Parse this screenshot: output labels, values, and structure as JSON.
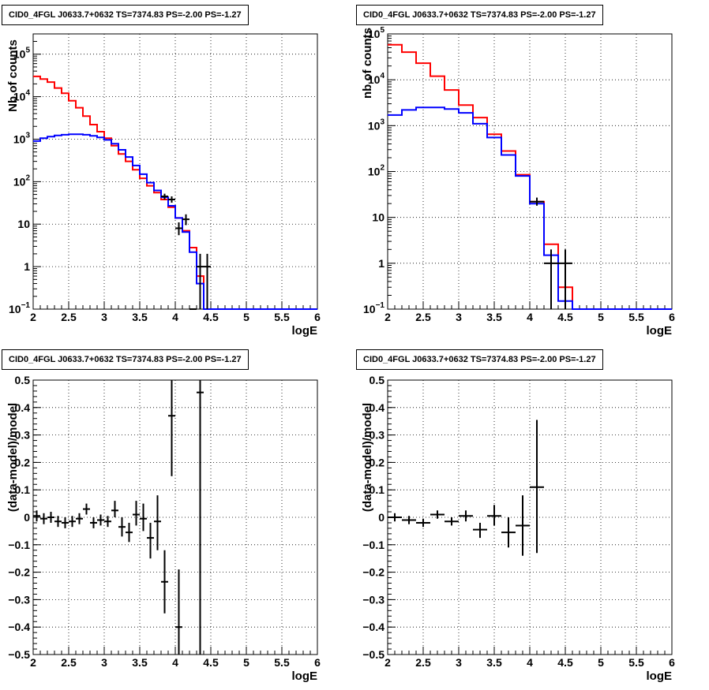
{
  "colors": {
    "total": "#ff0000",
    "model": "#0000ff",
    "data": "#000000",
    "grid": "#000000"
  },
  "chart_data": [
    {
      "type": "line",
      "title": "CID0_4FGL J0633.7+0632 TS=7374.83 PS=-2.00 PS=-1.27",
      "xlabel": "logE",
      "ylabel": "Nb of counts",
      "xlim": [
        2,
        6
      ],
      "ylim": [
        0.1,
        300000
      ],
      "log_y": true,
      "grid": true,
      "x_ticks": [
        "2",
        "2.5",
        "3",
        "3.5",
        "4",
        "4.5",
        "5",
        "5.5",
        "6"
      ],
      "y_ticks": [
        {
          "v": 0.1,
          "base": "10",
          "exp": "−1"
        },
        {
          "v": 1,
          "label": "1"
        },
        {
          "v": 10,
          "label": "10"
        },
        {
          "v": 100,
          "base": "10",
          "exp": "2"
        },
        {
          "v": 1000,
          "base": "10",
          "exp": "3"
        },
        {
          "v": 10000,
          "base": "10",
          "exp": "4"
        },
        {
          "v": 100000,
          "base": "10",
          "exp": "5"
        }
      ],
      "bin_edges": [
        2.0,
        2.1,
        2.2,
        2.3,
        2.4,
        2.5,
        2.6,
        2.7,
        2.8,
        2.9,
        3.0,
        3.1,
        3.2,
        3.3,
        3.4,
        3.5,
        3.6,
        3.7,
        3.8,
        3.9,
        4.0,
        4.1,
        4.2,
        4.3,
        4.4,
        4.5,
        4.6,
        4.7,
        4.8,
        4.9,
        5.0,
        5.1,
        5.2,
        5.3,
        5.4,
        5.5,
        5.6,
        5.7,
        5.8,
        5.9,
        6.0
      ],
      "series": [
        {
          "name": "",
          "color_key": "total",
          "values": [
            30000,
            26000,
            22000,
            16000,
            12000,
            8000,
            5500,
            3500,
            2200,
            1500,
            1050,
            700,
            450,
            300,
            190,
            120,
            80,
            55,
            38,
            25,
            14,
            7,
            2.8,
            0.6,
            0.1,
            0.1,
            0.1,
            0.1,
            0.1,
            0.1,
            0.1,
            0.1,
            0.1,
            0.1,
            0.1,
            0.1,
            0.1,
            0.1,
            0.1,
            0.1
          ]
        },
        {
          "name": "",
          "color_key": "model",
          "values": [
            900,
            1050,
            1150,
            1220,
            1270,
            1300,
            1300,
            1270,
            1200,
            1100,
            960,
            780,
            560,
            380,
            240,
            150,
            95,
            62,
            43,
            27,
            14,
            6.5,
            2.2,
            0.4,
            0.1,
            0.1,
            0.1,
            0.1,
            0.1,
            0.1,
            0.1,
            0.1,
            0.1,
            0.1,
            0.1,
            0.1,
            0.1,
            0.1,
            0.1,
            0.1
          ]
        }
      ],
      "points": [
        {
          "x": 3.85,
          "y": 45,
          "xerr": 0.05,
          "ylo": 38,
          "yhi": 52
        },
        {
          "x": 3.95,
          "y": 38,
          "xerr": 0.05,
          "ylo": 32,
          "yhi": 45
        },
        {
          "x": 4.05,
          "y": 8,
          "xerr": 0.05,
          "ylo": 5.5,
          "yhi": 11
        },
        {
          "x": 4.15,
          "y": 13,
          "xerr": 0.05,
          "ylo": 9.5,
          "yhi": 17
        },
        {
          "x": 4.25,
          "y": 0.1,
          "xerr": 0.05,
          "ylo": 0.1,
          "yhi": 0.1
        },
        {
          "x": 4.35,
          "y": 1,
          "xerr": 0.05,
          "ylo": 0.1,
          "yhi": 2
        },
        {
          "x": 4.45,
          "y": 1,
          "xerr": 0.05,
          "ylo": 0.1,
          "yhi": 2
        }
      ]
    },
    {
      "type": "line",
      "title": "CID0_4FGL J0633.7+0632 TS=7374.83 PS=-2.00 PS=-1.27",
      "xlabel": "logE",
      "ylabel": "nb of counts",
      "xlim": [
        2,
        6
      ],
      "ylim": [
        0.1,
        100000
      ],
      "log_y": true,
      "grid": true,
      "x_ticks": [
        "2",
        "2.5",
        "3",
        "3.5",
        "4",
        "4.5",
        "5",
        "5.5",
        "6"
      ],
      "y_ticks": [
        {
          "v": 0.1,
          "base": "10",
          "exp": "−1"
        },
        {
          "v": 1,
          "label": "1"
        },
        {
          "v": 10,
          "label": "10"
        },
        {
          "v": 100,
          "base": "10",
          "exp": "2"
        },
        {
          "v": 1000,
          "base": "10",
          "exp": "3"
        },
        {
          "v": 10000,
          "base": "10",
          "exp": "4"
        },
        {
          "v": 100000,
          "base": "10",
          "exp": "5"
        }
      ],
      "bin_edges": [
        2.0,
        2.2,
        2.4,
        2.6,
        2.8,
        3.0,
        3.2,
        3.4,
        3.6,
        3.8,
        4.0,
        4.2,
        4.4,
        4.6,
        4.8,
        5.0,
        5.2,
        5.4,
        5.6,
        5.8,
        6.0
      ],
      "series": [
        {
          "name": "",
          "color_key": "total",
          "values": [
            58000,
            40000,
            23000,
            12000,
            6000,
            2800,
            1500,
            650,
            280,
            85,
            22,
            2.6,
            0.3,
            0.1,
            0.1,
            0.1,
            0.1,
            0.1,
            0.1,
            0.1
          ]
        },
        {
          "name": "",
          "color_key": "model",
          "values": [
            1700,
            2200,
            2500,
            2500,
            2300,
            1900,
            1100,
            550,
            230,
            80,
            20,
            1.5,
            0.15,
            0.1,
            0.1,
            0.1,
            0.1,
            0.1,
            0.1,
            0.1
          ]
        }
      ],
      "points": [
        {
          "x": 4.1,
          "y": 22,
          "xerr": 0.1,
          "ylo": 18,
          "yhi": 27
        },
        {
          "x": 4.3,
          "y": 1,
          "xerr": 0.1,
          "ylo": 0.1,
          "yhi": 2
        },
        {
          "x": 4.5,
          "y": 1,
          "xerr": 0.1,
          "ylo": 0.1,
          "yhi": 2
        }
      ]
    },
    {
      "type": "scatter",
      "title": "CID0_4FGL J0633.7+0632 TS=7374.83 PS=-2.00 PS=-1.27",
      "xlabel": "logE",
      "ylabel": "(data-model)/model",
      "xlim": [
        2,
        6
      ],
      "ylim": [
        -0.5,
        0.5
      ],
      "log_y": false,
      "grid": true,
      "x_ticks": [
        "2",
        "2.5",
        "3",
        "3.5",
        "4",
        "4.5",
        "5",
        "5.5",
        "6"
      ],
      "y_ticks": [
        {
          "v": -0.5,
          "label": "−0.5"
        },
        {
          "v": -0.4,
          "label": "−0.4"
        },
        {
          "v": -0.3,
          "label": "−0.3"
        },
        {
          "v": -0.2,
          "label": "−0.2"
        },
        {
          "v": -0.1,
          "label": "−0.1"
        },
        {
          "v": 0,
          "label": "0"
        },
        {
          "v": 0.1,
          "label": "0.1"
        },
        {
          "v": 0.2,
          "label": "0.2"
        },
        {
          "v": 0.3,
          "label": "0.3"
        },
        {
          "v": 0.4,
          "label": "0.4"
        },
        {
          "v": 0.5,
          "label": "0.5"
        }
      ],
      "points": [
        {
          "x": 2.05,
          "y": 0.005,
          "xerr": 0.05,
          "ylo": -0.015,
          "yhi": 0.025
        },
        {
          "x": 2.15,
          "y": -0.005,
          "xerr": 0.05,
          "ylo": -0.025,
          "yhi": 0.015
        },
        {
          "x": 2.25,
          "y": 0.0,
          "xerr": 0.05,
          "ylo": -0.02,
          "yhi": 0.02
        },
        {
          "x": 2.35,
          "y": -0.015,
          "xerr": 0.05,
          "ylo": -0.035,
          "yhi": 0.005
        },
        {
          "x": 2.45,
          "y": -0.02,
          "xerr": 0.05,
          "ylo": -0.04,
          "yhi": 0.0
        },
        {
          "x": 2.55,
          "y": -0.015,
          "xerr": 0.05,
          "ylo": -0.035,
          "yhi": 0.005
        },
        {
          "x": 2.65,
          "y": -0.005,
          "xerr": 0.05,
          "ylo": -0.025,
          "yhi": 0.015
        },
        {
          "x": 2.75,
          "y": 0.03,
          "xerr": 0.05,
          "ylo": 0.01,
          "yhi": 0.05
        },
        {
          "x": 2.85,
          "y": -0.02,
          "xerr": 0.05,
          "ylo": -0.04,
          "yhi": 0.0
        },
        {
          "x": 2.95,
          "y": -0.01,
          "xerr": 0.05,
          "ylo": -0.03,
          "yhi": 0.01
        },
        {
          "x": 3.05,
          "y": -0.015,
          "xerr": 0.05,
          "ylo": -0.035,
          "yhi": 0.005
        },
        {
          "x": 3.15,
          "y": 0.025,
          "xerr": 0.05,
          "ylo": 0.0,
          "yhi": 0.06
        },
        {
          "x": 3.25,
          "y": -0.035,
          "xerr": 0.05,
          "ylo": -0.07,
          "yhi": 0.0
        },
        {
          "x": 3.35,
          "y": -0.055,
          "xerr": 0.05,
          "ylo": -0.09,
          "yhi": -0.02
        },
        {
          "x": 3.45,
          "y": 0.01,
          "xerr": 0.05,
          "ylo": -0.03,
          "yhi": 0.06
        },
        {
          "x": 3.55,
          "y": -0.005,
          "xerr": 0.05,
          "ylo": -0.05,
          "yhi": 0.05
        },
        {
          "x": 3.65,
          "y": -0.075,
          "xerr": 0.05,
          "ylo": -0.15,
          "yhi": -0.02
        },
        {
          "x": 3.75,
          "y": -0.015,
          "xerr": 0.05,
          "ylo": -0.12,
          "yhi": 0.08
        },
        {
          "x": 3.85,
          "y": -0.235,
          "xerr": 0.05,
          "ylo": -0.35,
          "yhi": -0.12
        },
        {
          "x": 3.95,
          "y": 0.37,
          "xerr": 0.05,
          "ylo": 0.15,
          "yhi": 0.5
        },
        {
          "x": 4.05,
          "y": -0.4,
          "xerr": 0.05,
          "ylo": -0.5,
          "yhi": -0.19
        },
        {
          "x": 4.35,
          "y": 0.455,
          "xerr": 0.05,
          "ylo": -0.5,
          "yhi": 0.5
        }
      ]
    },
    {
      "type": "scatter",
      "title": "CID0_4FGL J0633.7+0632 TS=7374.83 PS=-2.00 PS=-1.27",
      "xlabel": "logE",
      "ylabel": "(data-model)/model",
      "xlim": [
        2,
        6
      ],
      "ylim": [
        -0.5,
        0.5
      ],
      "log_y": false,
      "grid": true,
      "x_ticks": [
        "2",
        "2.5",
        "3",
        "3.5",
        "4",
        "4.5",
        "5",
        "5.5",
        "6"
      ],
      "y_ticks": [
        {
          "v": -0.5,
          "label": "−0.5"
        },
        {
          "v": -0.4,
          "label": "−0.4"
        },
        {
          "v": -0.3,
          "label": "−0.3"
        },
        {
          "v": -0.2,
          "label": "−0.2"
        },
        {
          "v": -0.1,
          "label": "−0.1"
        },
        {
          "v": 0,
          "label": "0"
        },
        {
          "v": 0.1,
          "label": "0.1"
        },
        {
          "v": 0.2,
          "label": "0.2"
        },
        {
          "v": 0.3,
          "label": "0.3"
        },
        {
          "v": 0.4,
          "label": "0.4"
        },
        {
          "v": 0.5,
          "label": "0.5"
        }
      ],
      "points": [
        {
          "x": 2.1,
          "y": 0.0,
          "xerr": 0.1,
          "ylo": -0.015,
          "yhi": 0.015
        },
        {
          "x": 2.3,
          "y": -0.01,
          "xerr": 0.1,
          "ylo": -0.025,
          "yhi": 0.005
        },
        {
          "x": 2.5,
          "y": -0.02,
          "xerr": 0.1,
          "ylo": -0.035,
          "yhi": -0.005
        },
        {
          "x": 2.7,
          "y": 0.01,
          "xerr": 0.1,
          "ylo": -0.005,
          "yhi": 0.025
        },
        {
          "x": 2.9,
          "y": -0.015,
          "xerr": 0.1,
          "ylo": -0.03,
          "yhi": 0.0
        },
        {
          "x": 3.1,
          "y": 0.005,
          "xerr": 0.1,
          "ylo": -0.015,
          "yhi": 0.025
        },
        {
          "x": 3.3,
          "y": -0.045,
          "xerr": 0.1,
          "ylo": -0.075,
          "yhi": -0.02
        },
        {
          "x": 3.5,
          "y": 0.005,
          "xerr": 0.1,
          "ylo": -0.03,
          "yhi": 0.045
        },
        {
          "x": 3.7,
          "y": -0.055,
          "xerr": 0.1,
          "ylo": -0.11,
          "yhi": 0.0
        },
        {
          "x": 3.9,
          "y": -0.03,
          "xerr": 0.1,
          "ylo": -0.14,
          "yhi": 0.08
        },
        {
          "x": 4.1,
          "y": 0.11,
          "xerr": 0.1,
          "ylo": -0.13,
          "yhi": 0.355
        }
      ]
    }
  ]
}
